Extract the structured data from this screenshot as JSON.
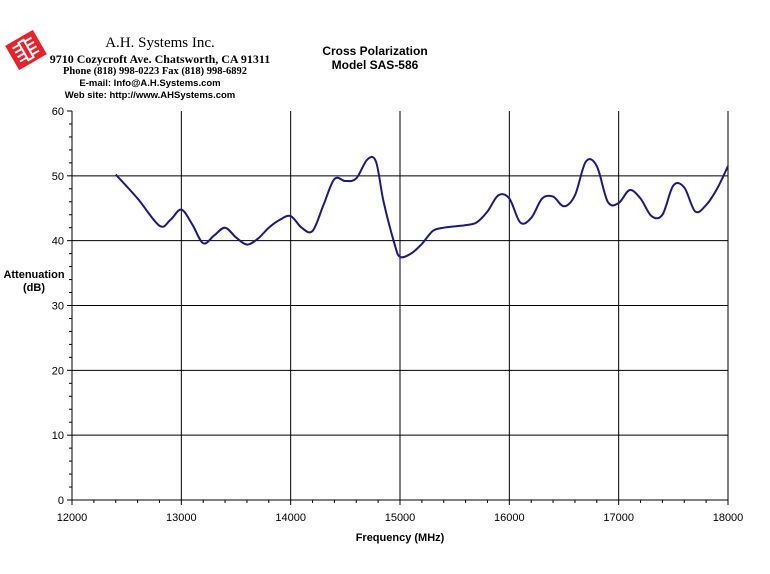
{
  "header": {
    "company_name": "A.H. Systems Inc.",
    "address": "9710 Cozycroft Ave. Chatsworth, CA 91311",
    "phone": "Phone (818) 998-0223 Fax (818) 998-6892",
    "email": "E-mail: Info@A.H.Systems.com",
    "website": "Web site: http://www.AHSystems.com",
    "logo_icon": "ahs-logo-icon",
    "logo_color": "#e8222a"
  },
  "chart_title": {
    "line1": "Cross Polarization",
    "line2": "Model SAS-586"
  },
  "chart_data": {
    "type": "line",
    "title": "Cross Polarization Model SAS-586",
    "xlabel": "Frequency (MHz)",
    "ylabel_line1": "Attenuation",
    "ylabel_line2": "(dB)",
    "xlim": [
      12000,
      18000
    ],
    "ylim": [
      0,
      60
    ],
    "x_ticks": [
      12000,
      13000,
      14000,
      15000,
      16000,
      17000,
      18000
    ],
    "y_ticks": [
      0,
      10,
      20,
      30,
      40,
      50,
      60
    ],
    "grid": true,
    "line_color": "#1a1a80",
    "series": [
      {
        "x": [
          12400,
          12600,
          12800,
          12900,
          13000,
          13100,
          13200,
          13300,
          13400,
          13500,
          13600,
          13700,
          13800,
          13900,
          14000,
          14100,
          14200,
          14300,
          14400,
          14500,
          14600,
          14700,
          14780,
          14850,
          14950,
          15000,
          15100,
          15200,
          15300,
          15400,
          15500,
          15600,
          15700,
          15800,
          15900,
          16000,
          16100,
          16200,
          16300,
          16400,
          16500,
          16600,
          16700,
          16800,
          16900,
          17000,
          17100,
          17200,
          17300,
          17400,
          17500,
          17600,
          17700,
          17800,
          17900,
          18000
        ],
        "values": [
          50.2,
          46.5,
          42.3,
          43.2,
          44.8,
          42.5,
          39.6,
          40.8,
          42.0,
          40.5,
          39.4,
          40.3,
          42.0,
          43.2,
          43.8,
          42.0,
          41.5,
          45.5,
          49.5,
          49.2,
          49.6,
          52.5,
          52.2,
          46.0,
          39.5,
          37.5,
          38.0,
          39.5,
          41.5,
          42.0,
          42.2,
          42.4,
          42.8,
          44.5,
          47.0,
          46.5,
          42.8,
          43.5,
          46.5,
          46.8,
          45.3,
          47.0,
          52.2,
          51.5,
          46.0,
          45.8,
          47.8,
          46.5,
          43.8,
          44.0,
          48.5,
          48.2,
          44.5,
          45.5,
          48.0,
          51.5
        ]
      }
    ]
  }
}
